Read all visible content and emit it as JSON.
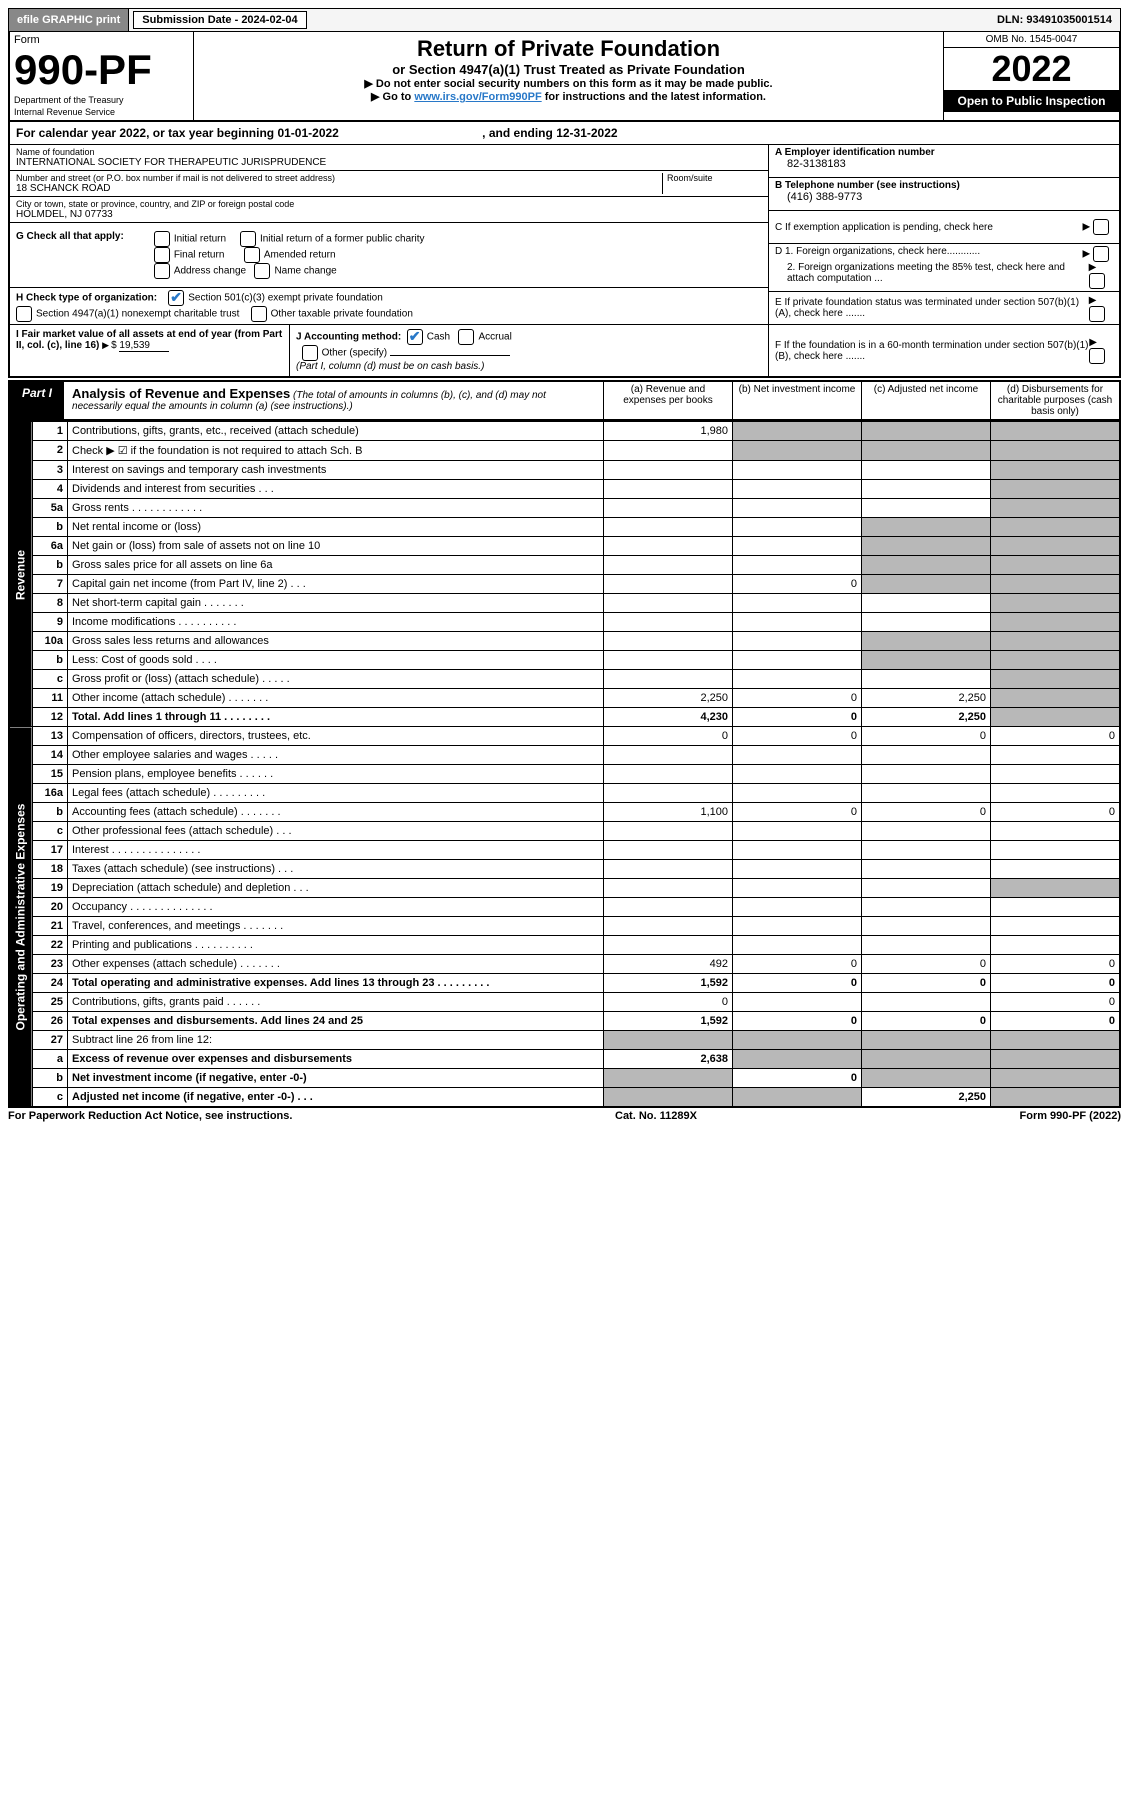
{
  "topbar": {
    "efile_btn": "efile GRAPHIC print",
    "sub_label": "Submission Date - 2024-02-04",
    "dln_label": "DLN: 93491035001514"
  },
  "header": {
    "form_label": "Form",
    "form_number": "990-PF",
    "dept": "Department of the Treasury",
    "irs": "Internal Revenue Service",
    "title": "Return of Private Foundation",
    "subtitle": "or Section 4947(a)(1) Trust Treated as Private Foundation",
    "instr1": "▶ Do not enter social security numbers on this form as it may be made public.",
    "instr2_pre": "▶ Go to ",
    "instr2_link": "www.irs.gov/Form990PF",
    "instr2_post": " for instructions and the latest information.",
    "omb": "OMB No. 1545-0047",
    "year": "2022",
    "open": "Open to Public Inspection"
  },
  "cal_year": {
    "pre": "For calendar year 2022, or tax year beginning ",
    "begin": "01-01-2022",
    "mid": " , and ending ",
    "end": "12-31-2022"
  },
  "entity": {
    "name_label": "Name of foundation",
    "name": "INTERNATIONAL SOCIETY FOR THERAPEUTIC JURISPRUDENCE",
    "addr_label": "Number and street (or P.O. box number if mail is not delivered to street address)",
    "addr": "18 SCHANCK ROAD",
    "room_label": "Room/suite",
    "city_label": "City or town, state or province, country, and ZIP or foreign postal code",
    "city": "HOLMDEL, NJ  07733",
    "a_label": "A Employer identification number",
    "ein": "82-3138183",
    "b_label": "B Telephone number (see instructions)",
    "phone": "(416) 388-9773",
    "c_label": "C If exemption application is pending, check here",
    "d1": "D 1. Foreign organizations, check here............",
    "d2": "2. Foreign organizations meeting the 85% test, check here and attach computation ...",
    "e_label": "E  If private foundation status was terminated under section 507(b)(1)(A), check here .......",
    "f_label": "F  If the foundation is in a 60-month termination under section 507(b)(1)(B), check here ......."
  },
  "checks": {
    "g_label": "G Check all that apply:",
    "initial": "Initial return",
    "initial_former": "Initial return of a former public charity",
    "final": "Final return",
    "amended": "Amended return",
    "addr_change": "Address change",
    "name_change": "Name change",
    "h_label": "H Check type of organization:",
    "h_501c3": "Section 501(c)(3) exempt private foundation",
    "h_4947": "Section 4947(a)(1) nonexempt charitable trust",
    "h_other": "Other taxable private foundation",
    "i_label": "I Fair market value of all assets at end of year (from Part II, col. (c), line 16)",
    "i_val": "19,539",
    "j_label": "J Accounting method:",
    "j_cash": "Cash",
    "j_accrual": "Accrual",
    "j_other": "Other (specify)",
    "j_note": "(Part I, column (d) must be on cash basis.)"
  },
  "part1": {
    "label": "Part I",
    "title": "Analysis of Revenue and Expenses",
    "note": "(The total of amounts in columns (b), (c), and (d) may not necessarily equal the amounts in column (a) (see instructions).)",
    "col_a": "(a) Revenue and expenses per books",
    "col_b": "(b) Net investment income",
    "col_c": "(c) Adjusted net income",
    "col_d": "(d) Disbursements for charitable purposes (cash basis only)"
  },
  "side": {
    "revenue": "Revenue",
    "expenses": "Operating and Administrative Expenses"
  },
  "lines": {
    "1": {
      "n": "1",
      "d": "Contributions, gifts, grants, etc., received (attach schedule)",
      "a": "1,980"
    },
    "2": {
      "n": "2",
      "d": "Check ▶ ☑ if the foundation is not required to attach Sch. B"
    },
    "3": {
      "n": "3",
      "d": "Interest on savings and temporary cash investments"
    },
    "4": {
      "n": "4",
      "d": "Dividends and interest from securities   .   .   ."
    },
    "5a": {
      "n": "5a",
      "d": "Gross rents   .   .   .   .   .   .   .   .   .   .   .   ."
    },
    "5b": {
      "n": "b",
      "d": "Net rental income or (loss)"
    },
    "6a": {
      "n": "6a",
      "d": "Net gain or (loss) from sale of assets not on line 10"
    },
    "6b": {
      "n": "b",
      "d": "Gross sales price for all assets on line 6a"
    },
    "7": {
      "n": "7",
      "d": "Capital gain net income (from Part IV, line 2)   .   .   .",
      "b": "0"
    },
    "8": {
      "n": "8",
      "d": "Net short-term capital gain   .   .   .   .   .   .   ."
    },
    "9": {
      "n": "9",
      "d": "Income modifications .   .   .   .   .   .   .   .   .   ."
    },
    "10a": {
      "n": "10a",
      "d": "Gross sales less returns and allowances"
    },
    "10b": {
      "n": "b",
      "d": "Less: Cost of goods sold   .   .   .   ."
    },
    "10c": {
      "n": "c",
      "d": "Gross profit or (loss) (attach schedule)   .   .   .   .   ."
    },
    "11": {
      "n": "11",
      "d": "Other income (attach schedule)   .   .   .   .   .   .   .",
      "a": "2,250",
      "b": "0",
      "c": "2,250"
    },
    "12": {
      "n": "12",
      "d": "Total. Add lines 1 through 11   .   .   .   .   .   .   .   .",
      "a": "4,230",
      "b": "0",
      "c": "2,250",
      "bold": true
    },
    "13": {
      "n": "13",
      "d": "Compensation of officers, directors, trustees, etc.",
      "a": "0",
      "b": "0",
      "c": "0",
      "dd": "0"
    },
    "14": {
      "n": "14",
      "d": "Other employee salaries and wages   .   .   .   .   ."
    },
    "15": {
      "n": "15",
      "d": "Pension plans, employee benefits   .   .   .   .   .   ."
    },
    "16a": {
      "n": "16a",
      "d": "Legal fees (attach schedule) .   .   .   .   .   .   .   .   ."
    },
    "16b": {
      "n": "b",
      "d": "Accounting fees (attach schedule) .   .   .   .   .   .   .",
      "a": "1,100",
      "b": "0",
      "c": "0",
      "dd": "0"
    },
    "16c": {
      "n": "c",
      "d": "Other professional fees (attach schedule)   .   .   ."
    },
    "17": {
      "n": "17",
      "d": "Interest  .   .   .   .   .   .   .   .   .   .   .   .   .   .   ."
    },
    "18": {
      "n": "18",
      "d": "Taxes (attach schedule) (see instructions)   .   .   ."
    },
    "19": {
      "n": "19",
      "d": "Depreciation (attach schedule) and depletion   .   .   ."
    },
    "20": {
      "n": "20",
      "d": "Occupancy .   .   .   .   .   .   .   .   .   .   .   .   .   ."
    },
    "21": {
      "n": "21",
      "d": "Travel, conferences, and meetings .   .   .   .   .   .   ."
    },
    "22": {
      "n": "22",
      "d": "Printing and publications .   .   .   .   .   .   .   .   .   ."
    },
    "23": {
      "n": "23",
      "d": "Other expenses (attach schedule) .   .   .   .   .   .   .",
      "a": "492",
      "b": "0",
      "c": "0",
      "dd": "0"
    },
    "24": {
      "n": "24",
      "d": "Total operating and administrative expenses. Add lines 13 through 23   .   .   .   .   .   .   .   .   .",
      "a": "1,592",
      "b": "0",
      "c": "0",
      "dd": "0",
      "bold": true
    },
    "25": {
      "n": "25",
      "d": "Contributions, gifts, grants paid   .   .   .   .   .   .",
      "a": "0",
      "dd": "0"
    },
    "26": {
      "n": "26",
      "d": "Total expenses and disbursements. Add lines 24 and 25",
      "a": "1,592",
      "b": "0",
      "c": "0",
      "dd": "0",
      "bold": true
    },
    "27": {
      "n": "27",
      "d": "Subtract line 26 from line 12:"
    },
    "27a": {
      "n": "a",
      "d": "Excess of revenue over expenses and disbursements",
      "a": "2,638",
      "bold": true
    },
    "27b": {
      "n": "b",
      "d": "Net investment income (if negative, enter -0-)",
      "b": "0",
      "bold": true
    },
    "27c": {
      "n": "c",
      "d": "Adjusted net income (if negative, enter -0-)   .   .   .",
      "c": "2,250",
      "bold": true
    }
  },
  "footer": {
    "left": "For Paperwork Reduction Act Notice, see instructions.",
    "mid": "Cat. No. 11289X",
    "right": "Form 990-PF (2022)"
  }
}
